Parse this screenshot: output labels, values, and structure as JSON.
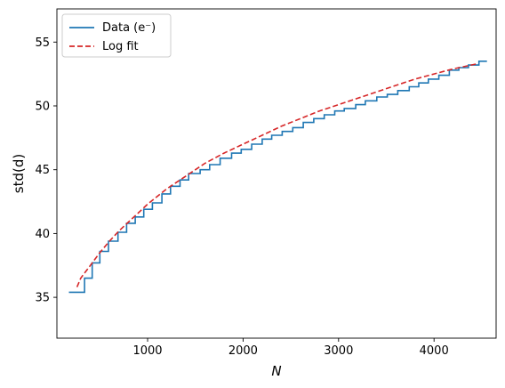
{
  "chart_data": {
    "type": "line",
    "xlabel": "N",
    "ylabel": "std(d)",
    "xlim": [
      50,
      4650
    ],
    "ylim": [
      31.8,
      57.6
    ],
    "xticks": [
      1000,
      2000,
      3000,
      4000
    ],
    "yticks": [
      35,
      40,
      45,
      50,
      55
    ],
    "grid": false,
    "legend": {
      "placement": "top-left",
      "entries": [
        "Data (e⁻)",
        "Log fit"
      ]
    },
    "series": [
      {
        "name": "Data (e⁻)",
        "style": "step",
        "color": "#1f77b4",
        "x": [
          250,
          340,
          420,
          500,
          590,
          690,
          780,
          870,
          960,
          1050,
          1150,
          1240,
          1340,
          1430,
          1550,
          1650,
          1760,
          1880,
          1980,
          2090,
          2200,
          2300,
          2410,
          2520,
          2630,
          2740,
          2850,
          2960,
          3060,
          3180,
          3280,
          3400,
          3510,
          3620,
          3740,
          3840,
          3940,
          4050,
          4160,
          4260,
          4360,
          4470
        ],
        "y": [
          35.4,
          36.5,
          37.7,
          38.6,
          39.4,
          40.1,
          40.8,
          41.3,
          41.9,
          42.4,
          43.1,
          43.7,
          44.2,
          44.7,
          45.0,
          45.4,
          45.9,
          46.3,
          46.6,
          47.0,
          47.4,
          47.7,
          48.0,
          48.3,
          48.7,
          49.0,
          49.3,
          49.6,
          49.8,
          50.1,
          50.4,
          50.7,
          50.9,
          51.2,
          51.5,
          51.8,
          52.1,
          52.4,
          52.8,
          53.0,
          53.2,
          53.5
        ]
      },
      {
        "name": "Log fit",
        "style": "dashed",
        "color": "#d62728",
        "x": [
          260,
          300,
          350,
          400,
          500,
          600,
          700,
          800,
          900,
          1000,
          1200,
          1400,
          1600,
          1800,
          2000,
          2200,
          2400,
          2600,
          2800,
          3000,
          3200,
          3400,
          3600,
          3800,
          4000,
          4200,
          4450
        ],
        "y": [
          35.8,
          36.5,
          37.0,
          37.5,
          38.5,
          39.4,
          40.2,
          40.9,
          41.6,
          42.3,
          43.5,
          44.5,
          45.5,
          46.3,
          47.0,
          47.7,
          48.4,
          49.0,
          49.6,
          50.1,
          50.6,
          51.1,
          51.6,
          52.1,
          52.5,
          52.9,
          53.3
        ]
      }
    ]
  },
  "colors": {
    "data_line": "#1f77b4",
    "fit_line": "#d62728"
  }
}
